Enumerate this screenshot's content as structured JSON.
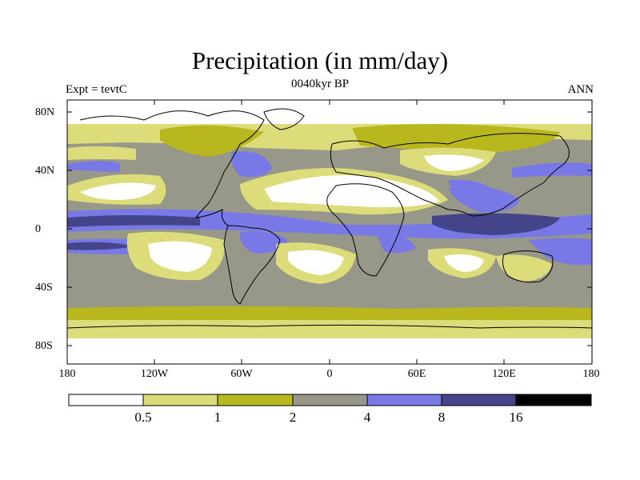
{
  "title": "Precipitation (in mm/day)",
  "subtitle": "0040kyr BP",
  "left_label": "Expt = tevtC",
  "right_label": "ANN",
  "lat_ticks": [
    "80N",
    "40N",
    "0",
    "40S",
    "80S"
  ],
  "lon_ticks": [
    "180",
    "120W",
    "60W",
    "0",
    "60E",
    "120E",
    "180"
  ],
  "colorbar": {
    "labels": [
      "0.5",
      "1",
      "2",
      "4",
      "8",
      "16"
    ],
    "colors": [
      "#ffffff",
      "#dcdc7a",
      "#b8b81e",
      "#97978a",
      "#7878e6",
      "#44448a",
      "#000000"
    ]
  },
  "palette": {
    "ocean_base": "#97978a",
    "land_mid": "#b8b81e",
    "dry": "#ffffff",
    "light": "#dcdc7a",
    "wet": "#7878e6",
    "very_wet": "#44448a",
    "coast": "#000000"
  }
}
